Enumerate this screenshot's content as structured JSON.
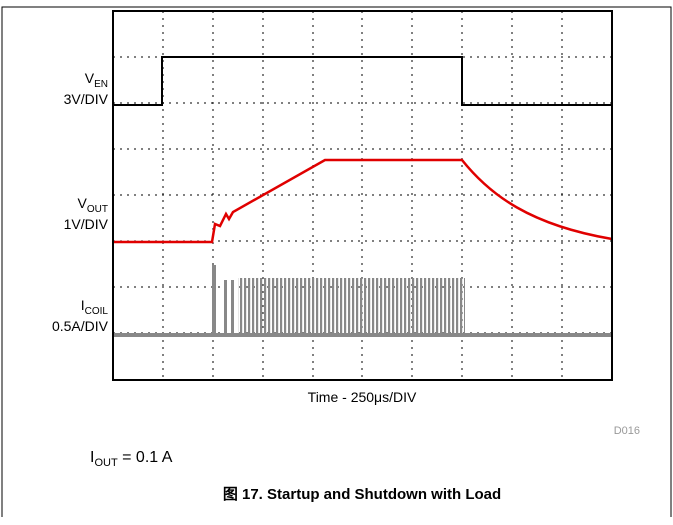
{
  "channels": [
    {
      "symbol": "V",
      "subscript": "EN",
      "scale": "3V/DIV"
    },
    {
      "symbol": "V",
      "subscript": "OUT",
      "scale": "1V/DIV"
    },
    {
      "symbol": "I",
      "subscript": "COIL",
      "scale": "0.5A/DIV"
    }
  ],
  "x_label": "Time - 250μs/DIV",
  "figure_id": "D016",
  "condition": {
    "symbol": "I",
    "subscript": "OUT",
    "text": " = 0.1 A"
  },
  "caption": "图 17. Startup and Shutdown with Load"
}
